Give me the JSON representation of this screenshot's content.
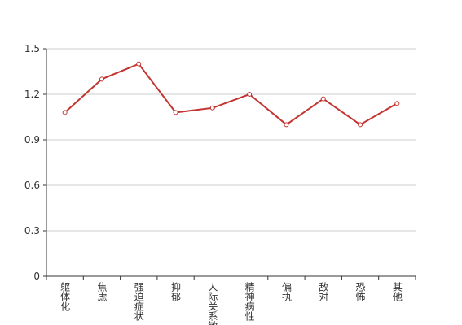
{
  "chart_data": {
    "type": "line",
    "categories": [
      "躯体化",
      "焦虑",
      "强迫症状",
      "抑郁",
      "人际关系敏感",
      "精神病性",
      "偏执",
      "敌对",
      "恐怖",
      "其他"
    ],
    "values": [
      1.08,
      1.3,
      1.4,
      1.08,
      1.11,
      1.2,
      1.0,
      1.17,
      1.0,
      1.14
    ],
    "color": "#c23531",
    "ylim": [
      0,
      1.5
    ],
    "yticks": [
      0,
      0.3,
      0.6,
      0.9,
      1.2,
      1.5
    ],
    "grid": true
  }
}
